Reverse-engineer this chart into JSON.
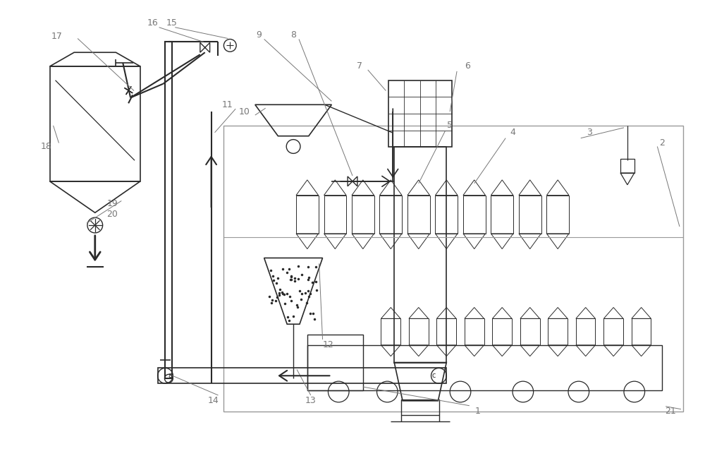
{
  "bg_color": "#ffffff",
  "lc": "#2a2a2a",
  "llc": "#999999",
  "lbl": "#777777",
  "figsize": [
    10.0,
    6.46
  ],
  "dpi": 100
}
